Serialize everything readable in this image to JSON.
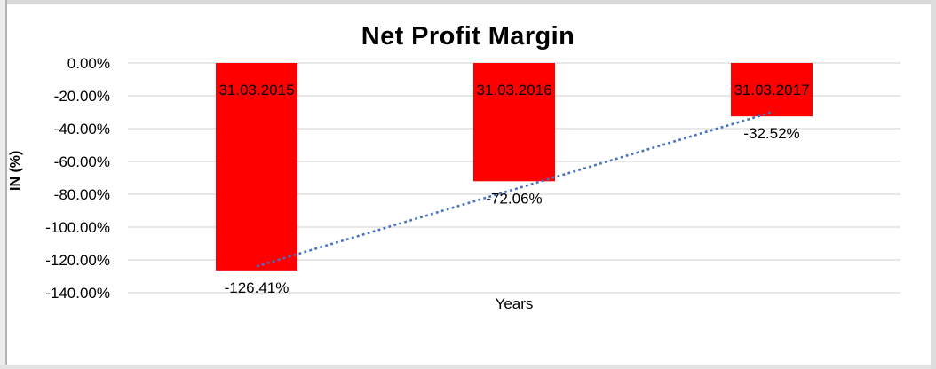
{
  "chart_data": {
    "type": "bar",
    "title": "Net Profit Margin",
    "xlabel": "Years",
    "ylabel": "IN (%)",
    "categories": [
      "31.03.2015",
      "31.03.2016",
      "31.03.2017"
    ],
    "values": [
      -126.41,
      -72.06,
      -32.52
    ],
    "data_labels": [
      "-126.41%",
      "-72.06%",
      "-32.52%"
    ],
    "y_ticks": [
      {
        "value": 0,
        "label": "0.00%"
      },
      {
        "value": -20,
        "label": "-20.00%"
      },
      {
        "value": -40,
        "label": "-40.00%"
      },
      {
        "value": -60,
        "label": "-60.00%"
      },
      {
        "value": -80,
        "label": "-80.00%"
      },
      {
        "value": -100,
        "label": "-100.00%"
      },
      {
        "value": -120,
        "label": "-120.00%"
      },
      {
        "value": -140,
        "label": "-140.00%"
      }
    ],
    "ylim": [
      -140,
      0
    ],
    "grid": true,
    "legend": "none",
    "colors": {
      "bar": "#FF0000",
      "trendline": "#4472C4",
      "gridline": "#D9D9D9",
      "text": "#000000"
    },
    "trendline": {
      "type": "linear",
      "style": "dotted"
    }
  }
}
